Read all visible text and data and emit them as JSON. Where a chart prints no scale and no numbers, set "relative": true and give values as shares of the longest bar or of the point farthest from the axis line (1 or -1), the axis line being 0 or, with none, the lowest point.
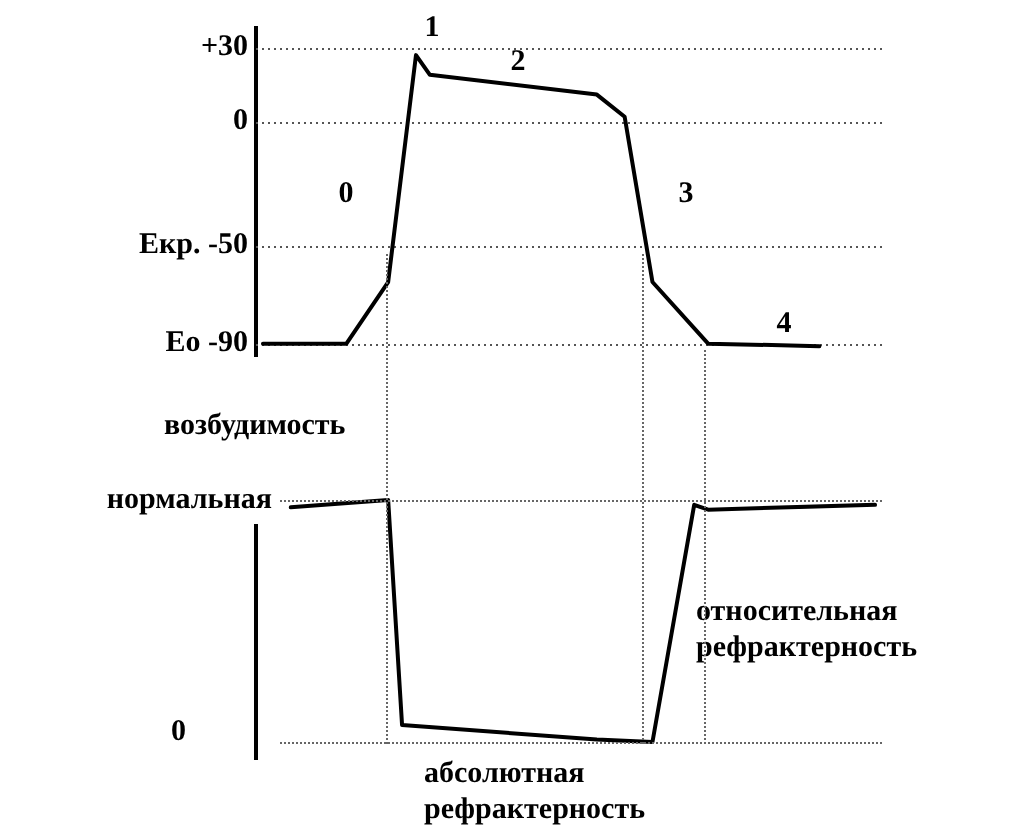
{
  "chart_data": [
    {
      "type": "line",
      "categories": [
        null,
        null,
        null,
        null,
        null,
        null,
        null,
        null,
        null,
        null,
        null,
        null,
        null,
        null,
        null,
        null,
        null,
        null,
        null,
        null,
        null,
        null,
        null,
        null,
        null,
        null,
        null,
        null,
        null,
        null,
        null,
        null,
        null,
        null,
        null,
        null,
        null,
        null,
        null,
        null,
        null,
        null,
        null,
        null,
        null
      ],
      "values": [
        -90,
        null,
        null,
        null,
        null,
        null,
        -90,
        null,
        null,
        -65,
        null,
        27,
        19,
        null,
        null,
        null,
        null,
        null,
        null,
        null,
        null,
        null,
        null,
        null,
        11,
        null,
        2,
        null,
        -65,
        null,
        null,
        null,
        -90,
        null,
        null,
        null,
        null,
        null,
        null,
        null,
        -91,
        null,
        null,
        null,
        null
      ],
      "color": "#000000",
      "ylim": [
        -95,
        38
      ],
      "yticks": [
        {
          "value": 30,
          "label": "+30"
        },
        0,
        {
          "value": -50,
          "label": "Екр. -50"
        },
        {
          "value": -90,
          "label": "Ео -90"
        }
      ],
      "grid": "y",
      "tick_labels": "y",
      "legend": false,
      "marker": "none",
      "line_style": "solid",
      "annotations": [
        "0",
        "1",
        "2",
        "3",
        "4"
      ]
    },
    {
      "type": "line",
      "categories": [
        null,
        null,
        null,
        null,
        null,
        null,
        null,
        null,
        null,
        null,
        null,
        null,
        null,
        null,
        null,
        null,
        null,
        null,
        null,
        null,
        null,
        null,
        null,
        null,
        null,
        null,
        null,
        null,
        null,
        null,
        null,
        null,
        null,
        null,
        null,
        null,
        null,
        null,
        null,
        null,
        null,
        null,
        null,
        null,
        null
      ],
      "values": [
        null,
        null,
        0.97,
        null,
        null,
        null,
        null,
        null,
        null,
        1,
        0.07,
        null,
        null,
        null,
        null,
        null,
        null,
        null,
        null,
        null,
        null,
        null,
        null,
        null,
        0.01,
        null,
        null,
        null,
        0,
        null,
        null,
        0.98,
        0.96,
        null,
        null,
        null,
        null,
        null,
        null,
        null,
        null,
        null,
        null,
        null,
        0.98
      ],
      "color": "#000000",
      "relative": true,
      "tick_labels": false,
      "legend": false,
      "marker": "none",
      "line_style": "solid",
      "ylabel": "возбудимость",
      "annotations": [
        "нормальная",
        "0",
        "абсолютная рефрактерность",
        "относительная рефрактерность"
      ]
    }
  ]
}
